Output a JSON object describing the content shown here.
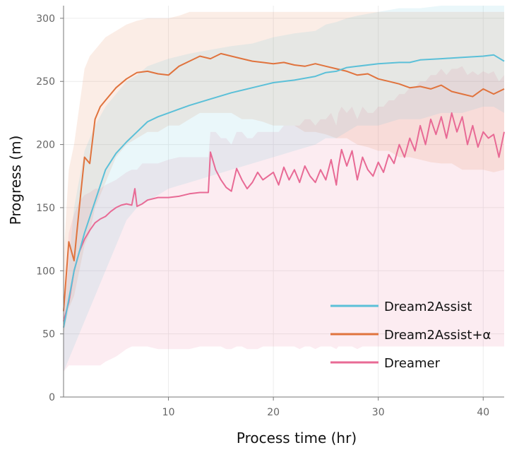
{
  "chart_data": {
    "type": "line",
    "xlabel": "Process time (hr)",
    "ylabel": "Progress (m)",
    "xlim": [
      0,
      42
    ],
    "ylim": [
      0,
      310
    ],
    "xticks": [
      10,
      20,
      30,
      40
    ],
    "yticks": [
      0,
      50,
      100,
      150,
      200,
      250,
      300
    ],
    "grid": true,
    "legend_position": "bottom-right",
    "series": [
      {
        "name": "Dream2Assist",
        "color": "#5bc0d8",
        "x": [
          0,
          1,
          2,
          3,
          4,
          5,
          6,
          7,
          8,
          9,
          10,
          12,
          14,
          16,
          18,
          20,
          22,
          24,
          25,
          26,
          27,
          28,
          30,
          32,
          33,
          34,
          36,
          38,
          40,
          41,
          42
        ],
        "y": [
          55,
          100,
          130,
          155,
          180,
          193,
          202,
          210,
          218,
          222,
          225,
          231,
          236,
          241,
          245,
          249,
          251,
          254,
          257,
          258,
          261,
          262,
          264,
          265,
          265,
          267,
          268,
          269,
          270,
          271,
          266
        ],
        "band_upper": [
          60,
          150,
          195,
          215,
          230,
          240,
          250,
          255,
          262,
          265,
          268,
          272,
          275,
          278,
          280,
          285,
          288,
          290,
          295,
          297,
          300,
          302,
          305,
          308,
          308,
          308,
          310,
          310,
          310,
          310,
          310
        ],
        "band_lower": [
          20,
          40,
          60,
          80,
          100,
          120,
          140,
          150,
          155,
          160,
          165,
          170,
          175,
          180,
          185,
          190,
          195,
          200,
          205,
          205,
          210,
          215,
          215,
          220,
          220,
          220,
          225,
          225,
          230,
          230,
          225
        ]
      },
      {
        "name": "Dream2Assist+α",
        "color": "#e0733d",
        "x": [
          0,
          0.5,
          1,
          1.5,
          2,
          2.5,
          3,
          3.5,
          4,
          5,
          6,
          7,
          8,
          9,
          10,
          11,
          12,
          13,
          14,
          15,
          16,
          17,
          18,
          19,
          20,
          21,
          22,
          23,
          24,
          25,
          26,
          27,
          28,
          29,
          30,
          31,
          32,
          33,
          34,
          35,
          36,
          37,
          38,
          39,
          40,
          41,
          42
        ],
        "y": [
          68,
          123,
          108,
          150,
          190,
          185,
          220,
          230,
          235,
          245,
          252,
          257,
          258,
          256,
          255,
          262,
          266,
          270,
          268,
          272,
          270,
          268,
          266,
          265,
          264,
          265,
          263,
          262,
          264,
          262,
          260,
          258,
          255,
          256,
          252,
          250,
          248,
          245,
          246,
          244,
          247,
          242,
          240,
          238,
          244,
          240,
          244
        ],
        "band_upper": [
          110,
          180,
          200,
          230,
          260,
          270,
          275,
          280,
          285,
          290,
          295,
          298,
          300,
          300,
          300,
          302,
          305,
          305,
          305,
          305,
          305,
          305,
          305,
          305,
          305,
          305,
          305,
          305,
          305,
          305,
          305,
          305,
          305,
          305,
          305,
          305,
          305,
          305,
          305,
          305,
          305,
          305,
          305,
          305,
          305,
          305,
          305
        ],
        "band_lower": [
          50,
          70,
          80,
          100,
          120,
          130,
          150,
          160,
          170,
          190,
          200,
          205,
          210,
          210,
          215,
          215,
          220,
          225,
          225,
          225,
          225,
          220,
          220,
          218,
          215,
          215,
          215,
          210,
          210,
          208,
          205,
          205,
          200,
          198,
          195,
          195,
          190,
          190,
          188,
          186,
          185,
          185,
          180,
          180,
          180,
          178,
          180
        ]
      },
      {
        "name": "Dreamer",
        "color": "#e86a95",
        "x": [
          0,
          0.5,
          1,
          1.5,
          2,
          2.5,
          3,
          3.5,
          4,
          4.5,
          5,
          5.5,
          6,
          6.5,
          6.8,
          7,
          7.5,
          8,
          9,
          10,
          11,
          12,
          13,
          13.5,
          13.8,
          14,
          14.5,
          15,
          15.5,
          16,
          16.5,
          17,
          17.5,
          18,
          18.5,
          19,
          19.5,
          20,
          20.5,
          21,
          21.5,
          22,
          22.5,
          23,
          23.5,
          24,
          24.5,
          25,
          25.5,
          26,
          26.2,
          26.5,
          27,
          27.5,
          28,
          28.5,
          29,
          29.5,
          30,
          30.5,
          31,
          31.5,
          32,
          32.5,
          33,
          33.5,
          34,
          34.5,
          35,
          35.5,
          36,
          36.5,
          37,
          37.5,
          38,
          38.5,
          39,
          39.5,
          40,
          40.5,
          41,
          41.5,
          42
        ],
        "y": [
          60,
          75,
          100,
          115,
          125,
          132,
          138,
          141,
          143,
          147,
          150,
          152,
          153,
          152,
          165,
          151,
          153,
          156,
          158,
          158,
          159,
          161,
          162,
          162,
          162,
          194,
          180,
          172,
          166,
          163,
          181,
          172,
          165,
          170,
          178,
          172,
          175,
          178,
          168,
          182,
          172,
          180,
          170,
          183,
          175,
          170,
          180,
          172,
          188,
          168,
          182,
          196,
          183,
          195,
          172,
          190,
          180,
          175,
          186,
          178,
          192,
          185,
          200,
          190,
          205,
          195,
          215,
          200,
          220,
          208,
          222,
          205,
          225,
          210,
          222,
          200,
          215,
          198,
          210,
          205,
          208,
          190,
          210
        ],
        "band_upper": [
          75,
          130,
          145,
          155,
          160,
          162,
          165,
          165,
          168,
          170,
          172,
          175,
          178,
          180,
          180,
          180,
          185,
          185,
          185,
          188,
          190,
          190,
          190,
          190,
          190,
          210,
          210,
          205,
          205,
          200,
          210,
          210,
          205,
          205,
          210,
          210,
          210,
          210,
          210,
          215,
          215,
          215,
          215,
          220,
          220,
          215,
          220,
          220,
          225,
          215,
          225,
          230,
          225,
          230,
          220,
          230,
          225,
          225,
          230,
          230,
          235,
          235,
          240,
          240,
          245,
          245,
          250,
          250,
          255,
          255,
          260,
          255,
          260,
          260,
          262,
          255,
          258,
          255,
          258,
          256,
          258,
          250,
          255
        ],
        "band_lower": [
          20,
          25,
          25,
          25,
          25,
          25,
          25,
          25,
          28,
          30,
          32,
          35,
          38,
          40,
          40,
          40,
          40,
          40,
          38,
          38,
          38,
          38,
          40,
          40,
          40,
          40,
          40,
          40,
          38,
          38,
          40,
          40,
          38,
          38,
          38,
          40,
          40,
          40,
          40,
          40,
          40,
          40,
          38,
          40,
          40,
          38,
          40,
          40,
          40,
          38,
          40,
          40,
          40,
          40,
          38,
          40,
          40,
          40,
          40,
          40,
          40,
          40,
          40,
          40,
          40,
          40,
          40,
          40,
          40,
          40,
          40,
          40,
          40,
          40,
          40,
          40,
          40,
          40,
          40,
          40,
          40,
          40,
          40
        ]
      }
    ]
  }
}
